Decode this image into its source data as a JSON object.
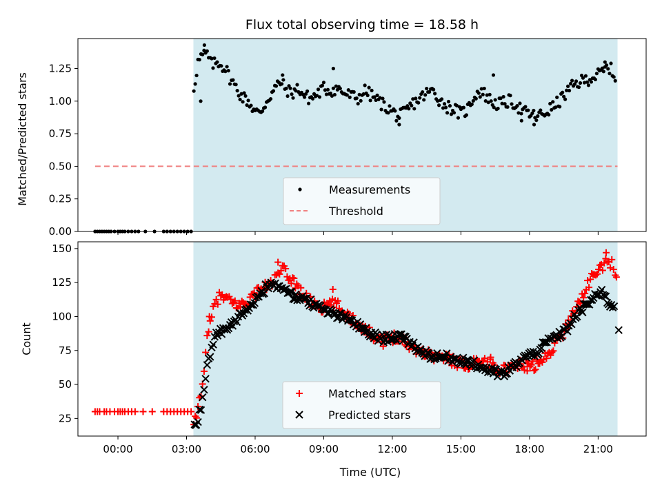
{
  "figure": {
    "title": "Flux total observing time = 18.58 h"
  },
  "chart_data": [
    {
      "type": "scatter",
      "panel": "top",
      "ylabel": "Matched/Predicted stars",
      "xlabel": "",
      "xlim_hours": [
        -1.75,
        23.1
      ],
      "ylim": [
        0,
        1.48
      ],
      "yticks": [
        "0.00",
        "0.25",
        "0.50",
        "0.75",
        "1.00",
        "1.25"
      ],
      "shaded_interval_hours": [
        3.3,
        21.85
      ],
      "shade_color": "#d3eaf0",
      "threshold": {
        "value": 0.5,
        "x_start_hours": -1.0,
        "x_end_hours": 21.85,
        "color": "#f08080"
      },
      "legend": {
        "placement": "lower-center",
        "entries": [
          {
            "name": "Measurements",
            "marker": "dot",
            "color": "#000000"
          },
          {
            "name": "Threshold",
            "marker": "dashed-line",
            "color": "#f08080"
          }
        ]
      },
      "series": [
        {
          "name": "Measurements",
          "color": "#000000",
          "zero_points_hours": [
            -1.0,
            -0.9,
            -0.8,
            -0.7,
            -0.6,
            -0.5,
            -0.4,
            -0.3,
            -0.15,
            0.0,
            0.1,
            0.2,
            0.3,
            0.45,
            0.6,
            0.75,
            0.9,
            1.2,
            1.6,
            2.0,
            2.15,
            2.3,
            2.45,
            2.6,
            2.75,
            2.9,
            3.05,
            3.2
          ],
          "anchors": [
            [
              3.32,
              1.1
            ],
            [
              3.5,
              1.3
            ],
            [
              3.7,
              1.35
            ],
            [
              3.9,
              1.36
            ],
            [
              4.1,
              1.28
            ],
            [
              4.4,
              1.3
            ],
            [
              4.7,
              1.25
            ],
            [
              4.9,
              1.18
            ],
            [
              5.1,
              1.12
            ],
            [
              5.4,
              1.04
            ],
            [
              5.7,
              1.0
            ],
            [
              6.0,
              0.92
            ],
            [
              6.2,
              0.9
            ],
            [
              6.5,
              1.0
            ],
            [
              6.8,
              1.08
            ],
            [
              7.1,
              1.15
            ],
            [
              7.3,
              1.1
            ],
            [
              7.6,
              1.06
            ],
            [
              7.9,
              1.1
            ],
            [
              8.1,
              1.05
            ],
            [
              8.4,
              1.02
            ],
            [
              8.7,
              1.05
            ],
            [
              9.0,
              1.1
            ],
            [
              9.3,
              1.08
            ],
            [
              9.6,
              1.1
            ],
            [
              9.9,
              1.06
            ],
            [
              10.2,
              1.04
            ],
            [
              10.5,
              1.02
            ],
            [
              10.8,
              1.08
            ],
            [
              11.1,
              1.04
            ],
            [
              11.4,
              1.0
            ],
            [
              11.7,
              0.96
            ],
            [
              12.0,
              0.92
            ],
            [
              12.3,
              0.88
            ],
            [
              12.6,
              0.92
            ],
            [
              12.9,
              0.98
            ],
            [
              13.2,
              1.02
            ],
            [
              13.5,
              1.06
            ],
            [
              13.8,
              1.08
            ],
            [
              14.1,
              1.0
            ],
            [
              14.4,
              0.96
            ],
            [
              14.7,
              0.94
            ],
            [
              15.0,
              0.9
            ],
            [
              15.3,
              0.94
            ],
            [
              15.6,
              1.05
            ],
            [
              15.9,
              1.08
            ],
            [
              16.2,
              1.02
            ],
            [
              16.5,
              0.98
            ],
            [
              16.8,
              0.98
            ],
            [
              17.1,
              1.0
            ],
            [
              17.4,
              0.98
            ],
            [
              17.7,
              0.92
            ],
            [
              18.0,
              0.9
            ],
            [
              18.3,
              0.88
            ],
            [
              18.6,
              0.9
            ],
            [
              18.9,
              0.94
            ],
            [
              19.2,
              0.98
            ],
            [
              19.5,
              1.04
            ],
            [
              19.8,
              1.1
            ],
            [
              20.1,
              1.14
            ],
            [
              20.4,
              1.16
            ],
            [
              20.7,
              1.18
            ],
            [
              21.0,
              1.2
            ],
            [
              21.3,
              1.24
            ],
            [
              21.5,
              1.26
            ],
            [
              21.75,
              1.18
            ]
          ],
          "outliers": [
            [
              3.62,
              1.0
            ],
            [
              3.78,
              1.43
            ],
            [
              7.2,
              1.2
            ],
            [
              9.42,
              1.25
            ],
            [
              12.3,
              0.82
            ],
            [
              16.42,
              1.2
            ],
            [
              17.65,
              0.85
            ],
            [
              18.2,
              0.82
            ],
            [
              21.3,
              1.3
            ]
          ]
        }
      ]
    },
    {
      "type": "scatter",
      "panel": "bottom",
      "ylabel": "Count",
      "xlabel": "Time (UTC)",
      "xlim_hours": [
        -1.75,
        23.1
      ],
      "ylim": [
        12,
        155
      ],
      "yticks": [
        "25",
        "50",
        "75",
        "100",
        "125",
        "150"
      ],
      "xticks": [
        "00:00",
        "03:00",
        "06:00",
        "09:00",
        "12:00",
        "15:00",
        "18:00",
        "21:00"
      ],
      "xtick_hours": [
        0,
        3,
        6,
        9,
        12,
        15,
        18,
        21
      ],
      "shaded_interval_hours": [
        3.3,
        21.85
      ],
      "shade_color": "#d3eaf0",
      "legend": {
        "placement": "lower-center",
        "entries": [
          {
            "name": "Matched stars",
            "marker": "plus",
            "color": "#ff0000"
          },
          {
            "name": "Predicted stars",
            "marker": "x",
            "color": "#000000"
          }
        ]
      },
      "series": [
        {
          "name": "Matched stars",
          "color": "#ff0000",
          "flat_points": {
            "y": 30,
            "hours": [
              -1.0,
              -0.9,
              -0.8,
              -0.6,
              -0.5,
              -0.35,
              -0.15,
              0.0,
              0.1,
              0.2,
              0.3,
              0.45,
              0.6,
              0.75,
              1.1,
              1.5,
              2.0,
              2.15,
              2.3,
              2.45,
              2.6,
              2.75,
              2.9,
              3.05,
              3.2
            ]
          },
          "anchors": [
            [
              3.32,
              18
            ],
            [
              3.5,
              32
            ],
            [
              3.7,
              52
            ],
            [
              3.9,
              82
            ],
            [
              4.1,
              100
            ],
            [
              4.3,
              112
            ],
            [
              4.5,
              115
            ],
            [
              4.8,
              112
            ],
            [
              5.0,
              110
            ],
            [
              5.3,
              108
            ],
            [
              5.6,
              110
            ],
            [
              5.9,
              115
            ],
            [
              6.2,
              120
            ],
            [
              6.5,
              122
            ],
            [
              6.8,
              126
            ],
            [
              7.0,
              130
            ],
            [
              7.2,
              135
            ],
            [
              7.4,
              130
            ],
            [
              7.7,
              126
            ],
            [
              8.0,
              118
            ],
            [
              8.3,
              112
            ],
            [
              8.6,
              110
            ],
            [
              8.9,
              106
            ],
            [
              9.2,
              108
            ],
            [
              9.5,
              110
            ],
            [
              9.8,
              104
            ],
            [
              10.1,
              100
            ],
            [
              10.4,
              96
            ],
            [
              10.7,
              92
            ],
            [
              11.0,
              88
            ],
            [
              11.3,
              85
            ],
            [
              11.6,
              82
            ],
            [
              11.9,
              84
            ],
            [
              12.2,
              86
            ],
            [
              12.5,
              82
            ],
            [
              12.8,
              78
            ],
            [
              13.1,
              76
            ],
            [
              13.4,
              74
            ],
            [
              13.7,
              72
            ],
            [
              14.0,
              70
            ],
            [
              14.3,
              70
            ],
            [
              14.6,
              68
            ],
            [
              14.9,
              66
            ],
            [
              15.2,
              64
            ],
            [
              15.5,
              66
            ],
            [
              15.8,
              68
            ],
            [
              16.1,
              66
            ],
            [
              16.4,
              64
            ],
            [
              16.7,
              62
            ],
            [
              17.0,
              60
            ],
            [
              17.3,
              62
            ],
            [
              17.6,
              65
            ],
            [
              17.9,
              64
            ],
            [
              18.2,
              64
            ],
            [
              18.5,
              66
            ],
            [
              18.8,
              72
            ],
            [
              19.1,
              80
            ],
            [
              19.4,
              86
            ],
            [
              19.7,
              95
            ],
            [
              20.0,
              106
            ],
            [
              20.3,
              115
            ],
            [
              20.6,
              125
            ],
            [
              20.9,
              132
            ],
            [
              21.2,
              137
            ],
            [
              21.4,
              142
            ],
            [
              21.6,
              138
            ],
            [
              21.75,
              128
            ]
          ],
          "outliers": [
            [
              4.0,
              100
            ],
            [
              7.0,
              140
            ],
            [
              9.4,
              120
            ],
            [
              16.3,
              70
            ],
            [
              17.9,
              60
            ],
            [
              21.35,
              147
            ],
            [
              21.8,
              129
            ]
          ]
        },
        {
          "name": "Predicted stars",
          "color": "#000000",
          "anchors": [
            [
              3.35,
              18
            ],
            [
              3.5,
              24
            ],
            [
              3.7,
              38
            ],
            [
              3.9,
              62
            ],
            [
              4.1,
              78
            ],
            [
              4.3,
              86
            ],
            [
              4.6,
              90
            ],
            [
              4.9,
              92
            ],
            [
              5.2,
              98
            ],
            [
              5.5,
              104
            ],
            [
              5.8,
              108
            ],
            [
              6.1,
              114
            ],
            [
              6.4,
              120
            ],
            [
              6.7,
              124
            ],
            [
              7.0,
              122
            ],
            [
              7.3,
              119
            ],
            [
              7.6,
              116
            ],
            [
              7.9,
              114
            ],
            [
              8.2,
              112
            ],
            [
              8.5,
              110
            ],
            [
              8.8,
              106
            ],
            [
              9.1,
              104
            ],
            [
              9.4,
              102
            ],
            [
              9.7,
              100
            ],
            [
              10.0,
              98
            ],
            [
              10.3,
              96
            ],
            [
              10.6,
              92
            ],
            [
              10.9,
              88
            ],
            [
              11.2,
              86
            ],
            [
              11.5,
              84
            ],
            [
              11.8,
              84
            ],
            [
              12.1,
              86
            ],
            [
              12.4,
              84
            ],
            [
              12.7,
              82
            ],
            [
              13.0,
              78
            ],
            [
              13.3,
              74
            ],
            [
              13.6,
              72
            ],
            [
              13.9,
              70
            ],
            [
              14.2,
              70
            ],
            [
              14.5,
              70
            ],
            [
              14.8,
              68
            ],
            [
              15.1,
              68
            ],
            [
              15.4,
              66
            ],
            [
              15.7,
              64
            ],
            [
              16.0,
              62
            ],
            [
              16.3,
              60
            ],
            [
              16.6,
              58
            ],
            [
              16.9,
              58
            ],
            [
              17.2,
              62
            ],
            [
              17.5,
              66
            ],
            [
              17.8,
              70
            ],
            [
              18.1,
              72
            ],
            [
              18.4,
              75
            ],
            [
              18.7,
              80
            ],
            [
              19.0,
              84
            ],
            [
              19.3,
              86
            ],
            [
              19.6,
              90
            ],
            [
              19.9,
              98
            ],
            [
              20.2,
              104
            ],
            [
              20.5,
              108
            ],
            [
              20.8,
              114
            ],
            [
              21.1,
              118
            ],
            [
              21.4,
              112
            ],
            [
              21.7,
              106
            ]
          ],
          "outliers": [
            [
              3.4,
              20
            ],
            [
              12.2,
              82
            ],
            [
              16.9,
              56
            ],
            [
              21.9,
              90
            ]
          ]
        }
      ]
    }
  ]
}
